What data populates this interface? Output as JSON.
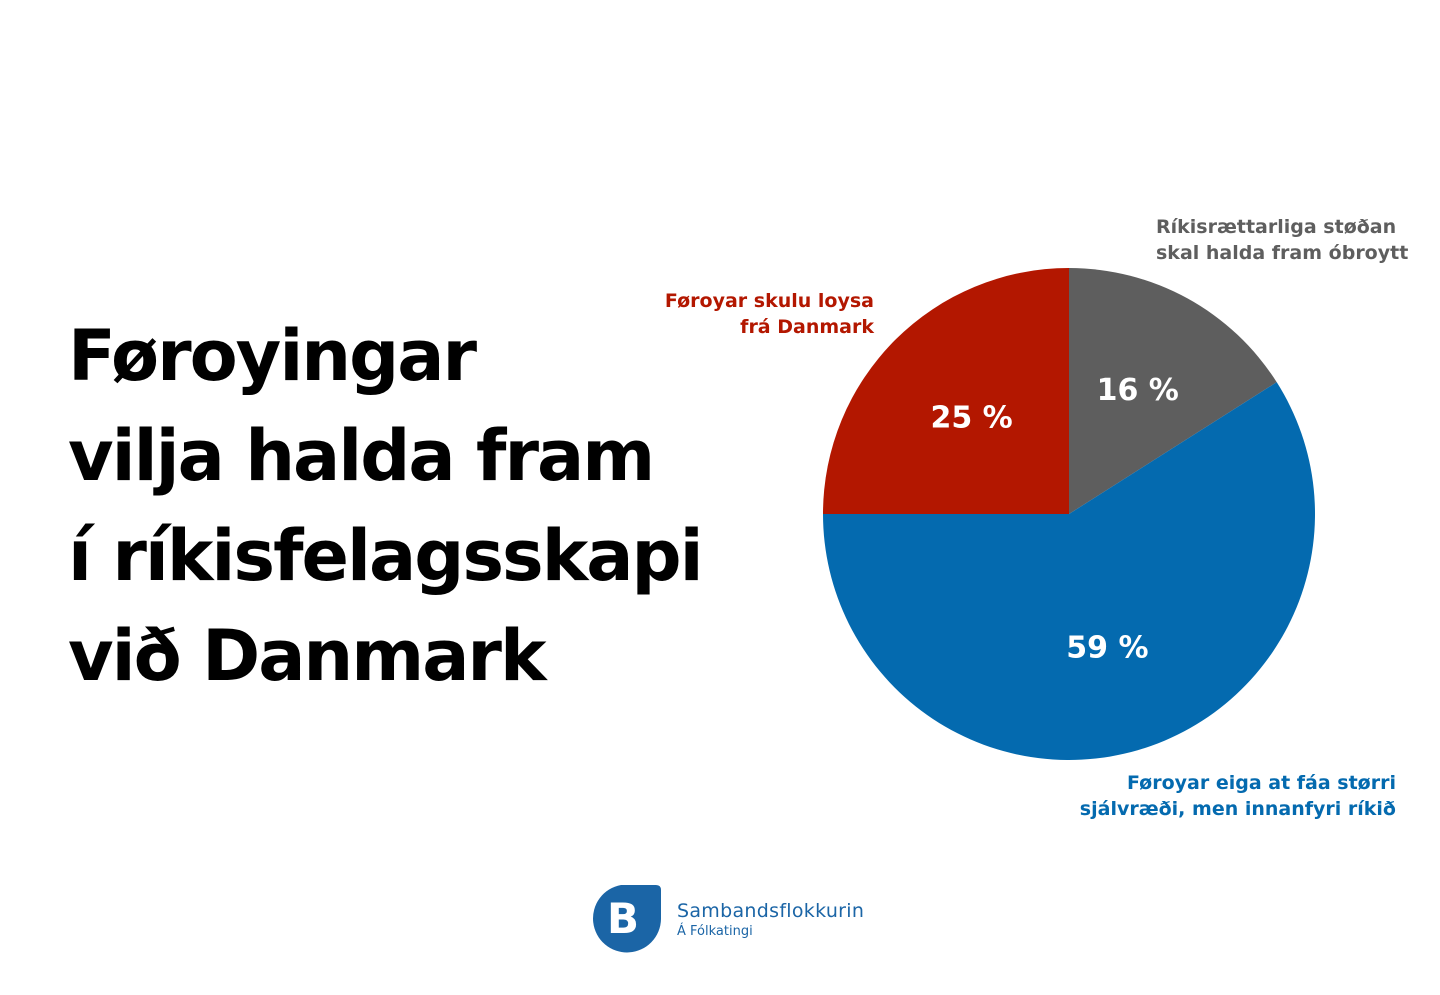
{
  "headline": {
    "lines": [
      "Føroyingar",
      "vilja halda fram",
      "í ríkisfelagsskapi",
      "við Danmark"
    ]
  },
  "chart_data": {
    "type": "pie",
    "title": "",
    "start": "12 o'clock, clockwise",
    "slices": [
      {
        "label_lines": [
          "Ríkisrættarliga støðan",
          "skal halda fram óbroytt"
        ],
        "value": 16,
        "value_label": "16 %",
        "color": "#5e5e5e"
      },
      {
        "label_lines": [
          "Føroyar eiga at fáa størri",
          "sjálvræði, men innanfyri ríkið"
        ],
        "value": 59,
        "value_label": "59 %",
        "color": "#046aaf"
      },
      {
        "label_lines": [
          "Føroyar skulu loysa",
          "frá Danmark"
        ],
        "value": 25,
        "value_label": "25 %",
        "color": "#b31700"
      }
    ]
  },
  "logo": {
    "mark_letter": "B",
    "name": "Sambandsflokkurin",
    "subtitle": "Á Fólkatingi",
    "color": "#1b65a6"
  }
}
